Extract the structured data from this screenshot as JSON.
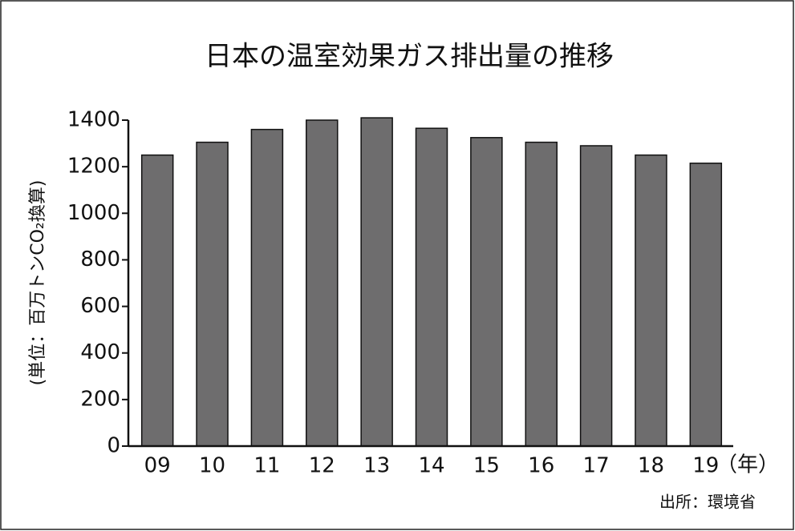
{
  "chart_data": {
    "type": "bar",
    "title": "日本の温室効果ガス排出量の推移",
    "y_label": "(単位：百万トンCO₂換算)",
    "x_unit": "（年）",
    "source": "出所：環境省",
    "categories": [
      "09",
      "10",
      "11",
      "12",
      "13",
      "14",
      "15",
      "16",
      "17",
      "18",
      "19"
    ],
    "values": [
      1250,
      1305,
      1360,
      1400,
      1410,
      1365,
      1325,
      1305,
      1290,
      1250,
      1215
    ],
    "color": "#6e6d6e",
    "ylim": [
      0,
      1400
    ],
    "yticks": [
      0,
      200,
      400,
      600,
      800,
      1000,
      1200,
      1400
    ],
    "grid": false
  }
}
